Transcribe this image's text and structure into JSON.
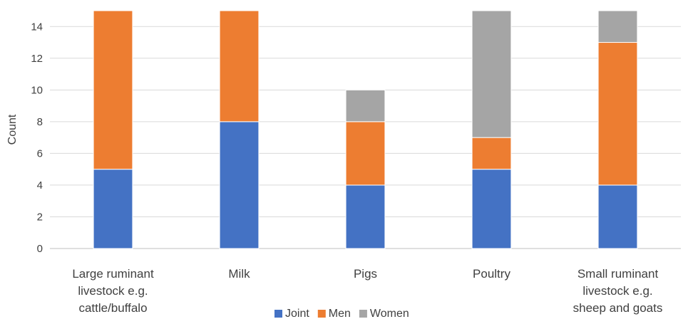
{
  "chart_data": {
    "type": "bar",
    "stacked": true,
    "categories": [
      [
        "Large ruminant",
        "livestock e.g.",
        "cattle/buffalo"
      ],
      [
        "Milk"
      ],
      [
        "Pigs"
      ],
      [
        "Poultry"
      ],
      [
        "Small ruminant",
        "livestock e.g.",
        "sheep and goats"
      ]
    ],
    "series": [
      {
        "name": "Joint",
        "color": "#4472C4",
        "values": [
          5,
          8,
          4,
          5,
          4
        ]
      },
      {
        "name": "Men",
        "color": "#ED7D31",
        "values": [
          10,
          7,
          4,
          2,
          9
        ]
      },
      {
        "name": "Women",
        "color": "#A5A5A5",
        "values": [
          0.2,
          0.2,
          2,
          9,
          3
        ]
      }
    ],
    "ylabel": "Count",
    "ylim": [
      0,
      15
    ],
    "yticks": [
      0,
      2,
      4,
      6,
      8,
      10,
      12,
      14
    ],
    "grid": true,
    "legend": "bottom"
  }
}
